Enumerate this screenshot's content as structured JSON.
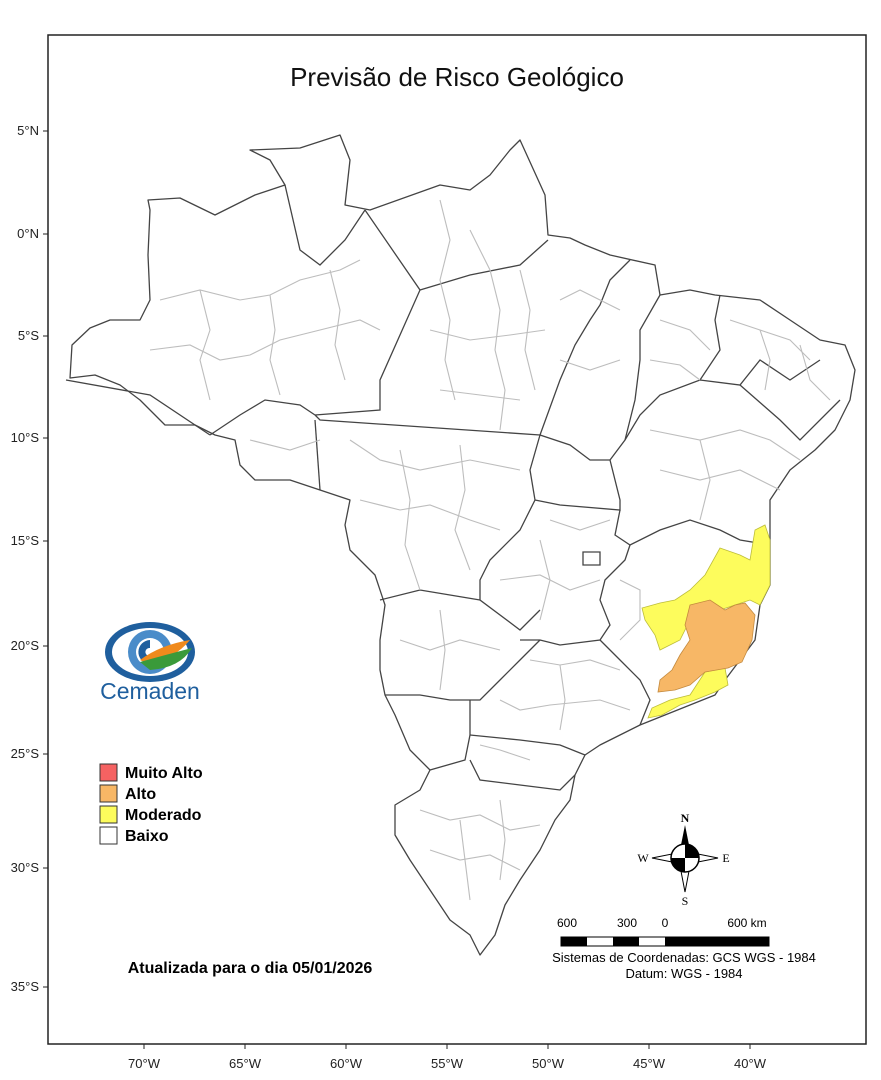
{
  "map": {
    "title": "Previsão de Risco Geológico",
    "lat_ticks": [
      "5°N",
      "0°N",
      "5°S",
      "10°S",
      "15°S",
      "20°S",
      "25°S",
      "30°S",
      "35°S"
    ],
    "lon_ticks": [
      "70°W",
      "65°W",
      "60°W",
      "55°W",
      "50°W",
      "45°W",
      "40°W"
    ],
    "updated_text": "Atualizada para o dia 05/01/2026",
    "coord_system": "Sistemas de Coordenadas: GCS WGS - 1984",
    "datum": "Datum: WGS - 1984"
  },
  "logo": {
    "text": "Cemaden"
  },
  "legend": {
    "items": [
      {
        "label": "Muito Alto",
        "color": "#f56262"
      },
      {
        "label": "Alto",
        "color": "#f7b766"
      },
      {
        "label": "Moderado",
        "color": "#fdfc5c"
      },
      {
        "label": "Baixo",
        "color": "#ffffff"
      }
    ]
  },
  "compass": {
    "n": "N",
    "s": "S",
    "e": "E",
    "w": "W"
  },
  "scale": {
    "l600": "600",
    "l300": "300",
    "l0": "0",
    "l600km": "600 km"
  }
}
